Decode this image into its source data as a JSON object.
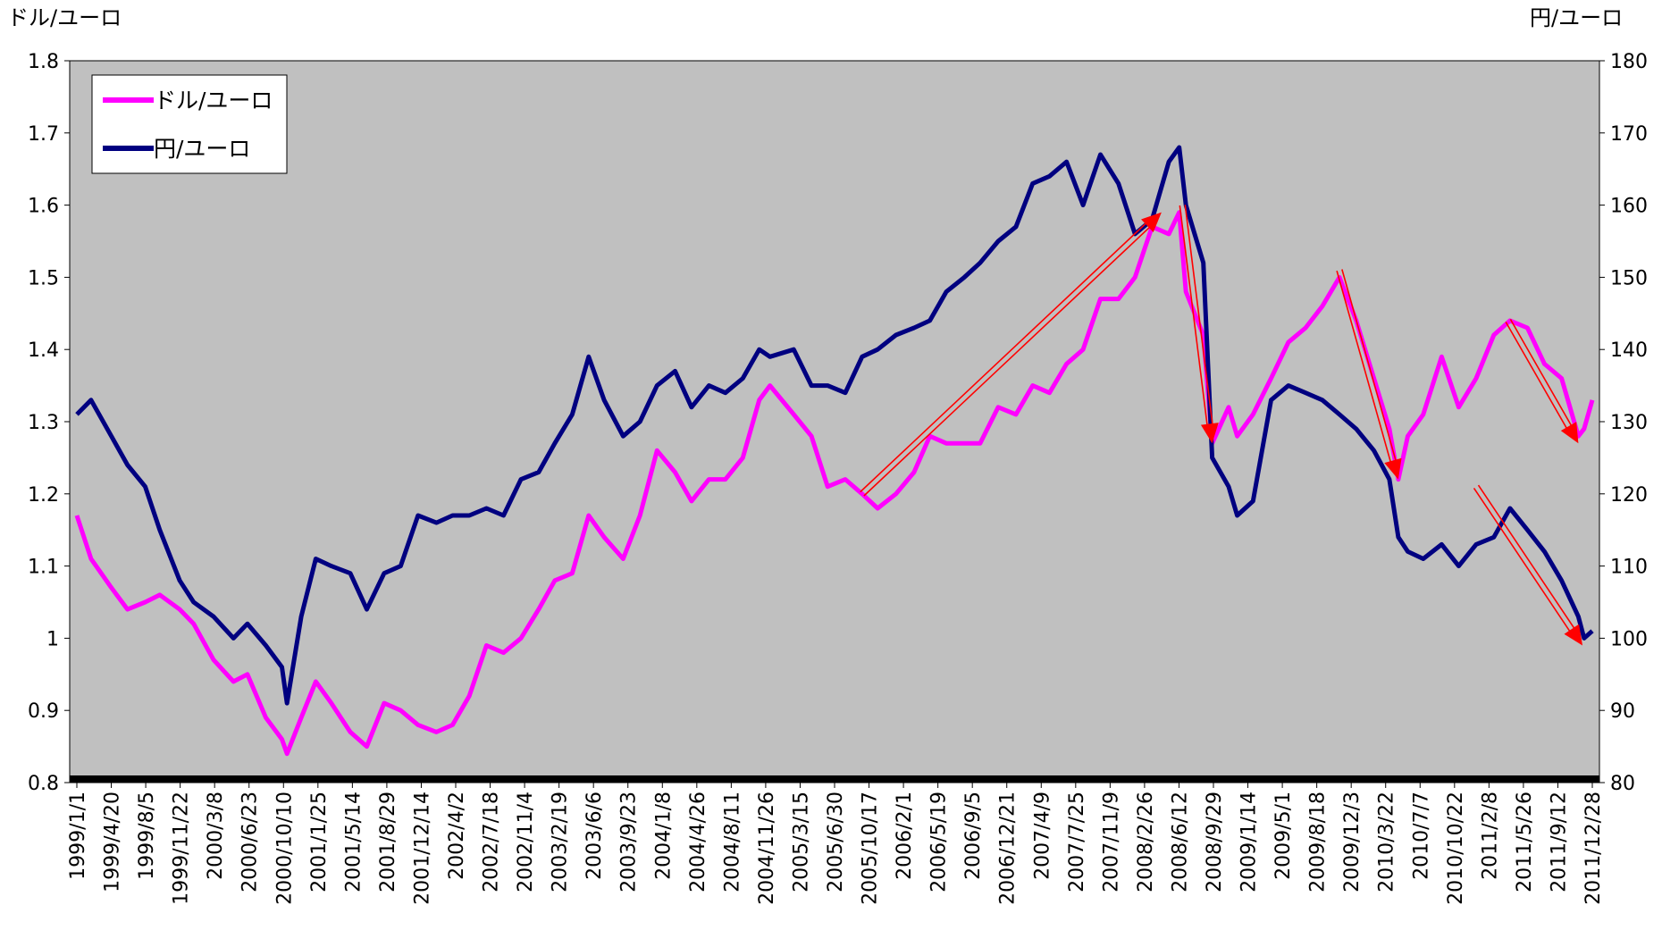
{
  "chart_data": {
    "type": "line",
    "left_axis_title": "ドル/ユーロ",
    "right_axis_title": "円/ユーロ",
    "y_left": {
      "min": 0.8,
      "max": 1.8,
      "ticks": [
        "0.8",
        "0.9",
        "1",
        "1.1",
        "1.2",
        "1.3",
        "1.4",
        "1.5",
        "1.6",
        "1.7",
        "1.8"
      ]
    },
    "y_right": {
      "min": 80,
      "max": 180,
      "ticks": [
        "80",
        "90",
        "100",
        "110",
        "120",
        "130",
        "140",
        "150",
        "160",
        "170",
        "180"
      ]
    },
    "x_tick_labels": [
      "1999/1/1",
      "1999/4/20",
      "1999/8/5",
      "1999/11/22",
      "2000/3/8",
      "2000/6/23",
      "2000/10/10",
      "2001/1/25",
      "2001/5/14",
      "2001/8/29",
      "2001/12/14",
      "2002/4/2",
      "2002/7/18",
      "2002/11/4",
      "2003/2/19",
      "2003/6/6",
      "2003/9/23",
      "2004/1/8",
      "2004/4/26",
      "2004/8/11",
      "2004/11/26",
      "2005/3/15",
      "2005/6/30",
      "2005/10/17",
      "2006/2/1",
      "2006/5/19",
      "2006/9/5",
      "2006/12/21",
      "2007/4/9",
      "2007/7/25",
      "2007/11/9",
      "2008/2/26",
      "2008/6/12",
      "2008/9/29",
      "2009/1/14",
      "2009/5/1",
      "2009/8/18",
      "2009/12/3",
      "2010/3/22",
      "2010/7/7",
      "2010/10/22",
      "2011/2/8",
      "2011/5/26",
      "2011/9/12",
      "2011/12/28"
    ],
    "legend": {
      "position": "top-left",
      "items": [
        "ドル/ユーロ",
        "円/ユーロ"
      ]
    },
    "series": [
      {
        "name": "ドル/ユーロ",
        "axis": "left",
        "color": "#FF00FF",
        "x": [
          "1999/1/1",
          "1999/2/15",
          "1999/4/20",
          "1999/6/10",
          "1999/8/5",
          "1999/9/20",
          "1999/11/22",
          "2000/1/5",
          "2000/3/8",
          "2000/5/10",
          "2000/6/23",
          "2000/8/20",
          "2000/10/10",
          "2000/10/26",
          "2000/12/10",
          "2001/1/25",
          "2001/3/15",
          "2001/5/14",
          "2001/7/5",
          "2001/8/29",
          "2001/10/20",
          "2001/12/14",
          "2002/2/10",
          "2002/4/2",
          "2002/5/25",
          "2002/7/18",
          "2002/9/10",
          "2002/11/4",
          "2002/12/30",
          "2003/2/19",
          "2003/4/15",
          "2003/6/6",
          "2003/7/25",
          "2003/9/23",
          "2003/11/15",
          "2004/1/8",
          "2004/3/5",
          "2004/4/26",
          "2004/6/20",
          "2004/8/11",
          "2004/10/5",
          "2004/11/26",
          "2004/12/30",
          "2005/3/15",
          "2005/5/10",
          "2005/6/30",
          "2005/8/25",
          "2005/10/17",
          "2005/12/5",
          "2006/2/1",
          "2006/3/30",
          "2006/5/19",
          "2006/7/10",
          "2006/9/5",
          "2006/10/25",
          "2006/12/21",
          "2007/2/15",
          "2007/4/9",
          "2007/6/1",
          "2007/7/25",
          "2007/9/15",
          "2007/11/9",
          "2008/1/5",
          "2008/2/26",
          "2008/4/20",
          "2008/6/12",
          "2008/7/15",
          "2008/8/5",
          "2008/9/29",
          "2008/10/27",
          "2008/12/18",
          "2009/1/14",
          "2009/3/5",
          "2009/5/1",
          "2009/6/25",
          "2009/8/18",
          "2009/10/10",
          "2009/12/3",
          "2010/1/25",
          "2010/3/22",
          "2010/5/10",
          "2010/6/7",
          "2010/7/7",
          "2010/8/25",
          "2010/10/22",
          "2010/12/15",
          "2011/2/8",
          "2011/4/5",
          "2011/5/26",
          "2011/7/20",
          "2011/9/12",
          "2011/11/5",
          "2011/12/28",
          "2012/1/15",
          "2012/2/10"
        ],
        "values": [
          1.17,
          1.11,
          1.07,
          1.04,
          1.05,
          1.06,
          1.04,
          1.02,
          0.97,
          0.94,
          0.95,
          0.89,
          0.86,
          0.84,
          0.89,
          0.94,
          0.91,
          0.87,
          0.85,
          0.91,
          0.9,
          0.88,
          0.87,
          0.88,
          0.92,
          0.99,
          0.98,
          1.0,
          1.04,
          1.08,
          1.09,
          1.17,
          1.14,
          1.11,
          1.17,
          1.26,
          1.23,
          1.19,
          1.22,
          1.22,
          1.25,
          1.33,
          1.35,
          1.31,
          1.28,
          1.21,
          1.22,
          1.2,
          1.18,
          1.2,
          1.23,
          1.28,
          1.27,
          1.27,
          1.27,
          1.32,
          1.31,
          1.35,
          1.34,
          1.38,
          1.4,
          1.47,
          1.47,
          1.5,
          1.57,
          1.56,
          1.59,
          1.48,
          1.42,
          1.27,
          1.32,
          1.28,
          1.31,
          1.36,
          1.41,
          1.43,
          1.46,
          1.5,
          1.44,
          1.36,
          1.29,
          1.22,
          1.28,
          1.31,
          1.39,
          1.32,
          1.36,
          1.42,
          1.44,
          1.43,
          1.38,
          1.36,
          1.28,
          1.29,
          1.33
        ]
      },
      {
        "name": "円/ユーロ",
        "axis": "right",
        "color": "#000080",
        "x": [
          "1999/1/1",
          "1999/2/15",
          "1999/4/20",
          "1999/6/10",
          "1999/8/5",
          "1999/9/20",
          "1999/11/22",
          "2000/1/5",
          "2000/3/8",
          "2000/5/10",
          "2000/6/23",
          "2000/8/20",
          "2000/10/10",
          "2000/10/26",
          "2000/12/10",
          "2001/1/25",
          "2001/3/15",
          "2001/5/14",
          "2001/7/5",
          "2001/8/29",
          "2001/10/20",
          "2001/12/14",
          "2002/2/10",
          "2002/4/2",
          "2002/5/25",
          "2002/7/18",
          "2002/9/10",
          "2002/11/4",
          "2002/12/30",
          "2003/2/19",
          "2003/4/15",
          "2003/6/6",
          "2003/7/25",
          "2003/9/23",
          "2003/11/15",
          "2004/1/8",
          "2004/3/5",
          "2004/4/26",
          "2004/6/20",
          "2004/8/11",
          "2004/10/5",
          "2004/11/26",
          "2004/12/30",
          "2005/3/15",
          "2005/5/10",
          "2005/6/30",
          "2005/8/25",
          "2005/10/17",
          "2005/12/5",
          "2006/2/1",
          "2006/3/30",
          "2006/5/19",
          "2006/7/10",
          "2006/9/5",
          "2006/10/25",
          "2006/12/21",
          "2007/2/15",
          "2007/4/9",
          "2007/6/1",
          "2007/7/25",
          "2007/9/15",
          "2007/11/9",
          "2008/1/5",
          "2008/2/26",
          "2008/4/20",
          "2008/6/12",
          "2008/7/15",
          "2008/8/5",
          "2008/9/29",
          "2008/10/27",
          "2008/12/18",
          "2009/1/14",
          "2009/3/5",
          "2009/5/1",
          "2009/6/25",
          "2009/8/18",
          "2009/10/10",
          "2009/12/3",
          "2010/1/25",
          "2010/3/22",
          "2010/5/10",
          "2010/6/7",
          "2010/7/7",
          "2010/8/25",
          "2010/10/22",
          "2010/12/15",
          "2011/2/8",
          "2011/4/5",
          "2011/5/26",
          "2011/7/20",
          "2011/9/12",
          "2011/11/5",
          "2011/12/28",
          "2012/1/15",
          "2012/2/10"
        ],
        "values": [
          131,
          133,
          128,
          124,
          121,
          115,
          108,
          105,
          103,
          100,
          102,
          99,
          96,
          91,
          103,
          111,
          110,
          109,
          104,
          109,
          110,
          117,
          116,
          117,
          117,
          118,
          117,
          122,
          123,
          127,
          131,
          139,
          133,
          128,
          130,
          135,
          137,
          132,
          135,
          134,
          136,
          140,
          139,
          140,
          135,
          135,
          134,
          139,
          140,
          142,
          143,
          144,
          148,
          150,
          152,
          155,
          157,
          163,
          164,
          166,
          160,
          167,
          163,
          156,
          158,
          166,
          168,
          160,
          152,
          125,
          121,
          117,
          119,
          133,
          135,
          134,
          133,
          131,
          129,
          126,
          122,
          114,
          112,
          111,
          113,
          110,
          113,
          114,
          118,
          115,
          112,
          108,
          103,
          100,
          101
        ]
      }
    ],
    "annotations": {
      "arrows": [
        {
          "from": [
            "2005/10/17",
            1.2
          ],
          "to": [
            "2008/5/20",
            1.59
          ],
          "axis": "left",
          "color": "#FF0000"
        },
        {
          "from": [
            "2008/7/25",
            1.6
          ],
          "to": [
            "2008/10/27",
            1.27
          ],
          "axis": "left",
          "color": "#FF0000"
        },
        {
          "from": [
            "2009/12/3",
            1.51
          ],
          "to": [
            "2010/6/7",
            1.22
          ],
          "axis": "left",
          "color": "#FF0000"
        },
        {
          "from": [
            "2011/5/20",
            1.44
          ],
          "to": [
            "2011/12/28",
            1.27
          ],
          "axis": "left",
          "color": "#FF0000"
        },
        {
          "from": [
            "2011/2/8",
            121
          ],
          "to": [
            "2012/1/10",
            99
          ],
          "axis": "right",
          "color": "#FF0000"
        }
      ]
    },
    "colors": {
      "plot_background": "#C0C0C0",
      "x_axis_bar": "#000000",
      "arrow": "#FF0000",
      "arrowhead": "#FF0000"
    }
  }
}
